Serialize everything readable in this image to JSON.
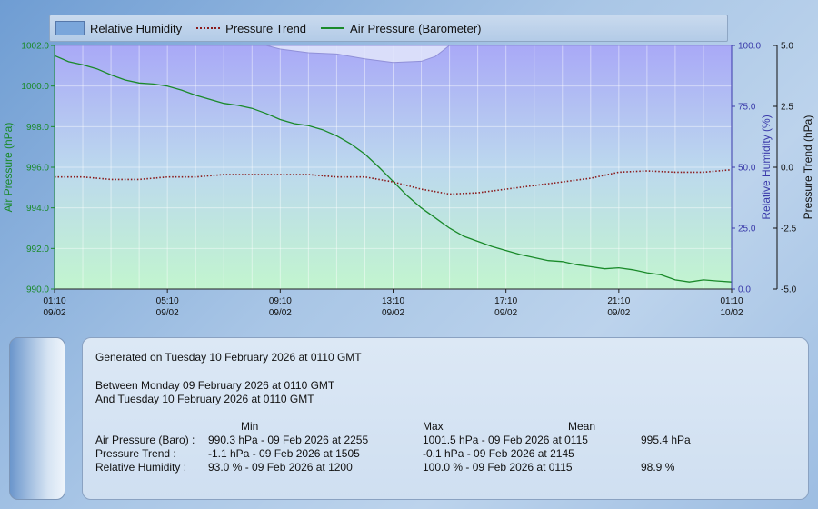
{
  "chart_data": {
    "type": "line",
    "x_axis": {
      "ticks": [
        {
          "time": "01:10",
          "date": "09/02"
        },
        {
          "time": "05:10",
          "date": "09/02"
        },
        {
          "time": "09:10",
          "date": "09/02"
        },
        {
          "time": "13:10",
          "date": "09/02"
        },
        {
          "time": "17:10",
          "date": "09/02"
        },
        {
          "time": "21:10",
          "date": "09/02"
        },
        {
          "time": "01:10",
          "date": "10/02"
        }
      ],
      "range_hours": [
        0,
        24
      ]
    },
    "axes": {
      "pressure": {
        "label": "Air Pressure (hPa)",
        "range": [
          990.0,
          1002.0
        ],
        "ticks": [
          "990.0",
          "992.0",
          "994.0",
          "996.0",
          "998.0",
          "1000.0",
          "1002.0"
        ],
        "color": "#1a8a2a"
      },
      "humidity": {
        "label": "Relative Humidity (%)",
        "range": [
          0.0,
          100.0
        ],
        "ticks": [
          "0.0",
          "25.0",
          "50.0",
          "75.0",
          "100.0"
        ],
        "color": "#3a3aaa"
      },
      "trend": {
        "label": "Pressure Trend (hPa)",
        "range": [
          -5.0,
          5.0
        ],
        "ticks": [
          "-5.0",
          "-2.5",
          "0.0",
          "2.5",
          "5.0"
        ],
        "color": "#111111"
      }
    },
    "legend": [
      {
        "name": "Relative Humidity",
        "style": "area"
      },
      {
        "name": "Pressure Trend",
        "style": "dotted"
      },
      {
        "name": "Air Pressure (Barometer)",
        "style": "line"
      }
    ],
    "series": [
      {
        "name": "Air Pressure (Barometer)",
        "axis": "pressure",
        "color": "#1a8a2a",
        "x": [
          0,
          0.5,
          1,
          1.5,
          2,
          2.5,
          3,
          3.5,
          4,
          4.5,
          5,
          5.5,
          6,
          6.5,
          7,
          7.5,
          8,
          8.5,
          9,
          9.5,
          10,
          10.5,
          11,
          11.5,
          12,
          12.5,
          13,
          13.5,
          14,
          14.5,
          15,
          15.5,
          16,
          16.5,
          17,
          17.5,
          18,
          18.5,
          19,
          19.5,
          20,
          20.5,
          21,
          21.5,
          22,
          22.5,
          23,
          23.5,
          24
        ],
        "y": [
          1001.5,
          1001.2,
          1001.05,
          1000.85,
          1000.55,
          1000.3,
          1000.15,
          1000.1,
          1000.0,
          999.8,
          999.55,
          999.35,
          999.15,
          999.05,
          998.9,
          998.65,
          998.35,
          998.15,
          998.05,
          997.85,
          997.55,
          997.15,
          996.65,
          996.0,
          995.3,
          994.6,
          994.0,
          993.5,
          993.0,
          992.6,
          992.35,
          992.1,
          991.9,
          991.7,
          991.55,
          991.4,
          991.35,
          991.2,
          991.1,
          991.0,
          991.05,
          990.95,
          990.8,
          990.7,
          990.45,
          990.35,
          990.45,
          990.4,
          990.35
        ]
      },
      {
        "name": "Pressure Trend",
        "axis": "trend",
        "color": "#8a1a1a",
        "x": [
          0,
          1,
          2,
          3,
          4,
          5,
          6,
          7,
          8,
          9,
          10,
          11,
          12,
          13,
          14,
          15,
          16,
          17,
          18,
          19,
          20,
          21,
          22,
          23,
          24
        ],
        "y": [
          -0.4,
          -0.4,
          -0.5,
          -0.5,
          -0.4,
          -0.4,
          -0.3,
          -0.3,
          -0.3,
          -0.3,
          -0.4,
          -0.4,
          -0.6,
          -0.9,
          -1.1,
          -1.05,
          -0.9,
          -0.75,
          -0.6,
          -0.45,
          -0.2,
          -0.15,
          -0.2,
          -0.2,
          -0.1
        ]
      },
      {
        "name": "Relative Humidity",
        "axis": "humidity",
        "color": "#9f9ff5",
        "x": [
          0,
          7.5,
          8,
          9,
          10,
          11,
          12,
          13,
          13.5,
          14,
          24
        ],
        "y": [
          100,
          100,
          98.5,
          97,
          96.5,
          94.5,
          93.0,
          93.5,
          95.5,
          100,
          100
        ]
      }
    ]
  },
  "summary": {
    "generated": "Generated on Tuesday 10 February 2026 at 0110  GMT",
    "between": "Between Monday 09 February 2026 at 0110 GMT",
    "and": "And Tuesday 10 February 2026 at 0110 GMT",
    "headers": {
      "min": "Min",
      "max": "Max",
      "mean": "Mean"
    },
    "rows": [
      {
        "label": "Air Pressure (Baro) :",
        "min": "990.3 hPa - 09 Feb 2026 at 2255",
        "max": "1001.5 hPa - 09 Feb 2026 at 0115",
        "mean": "995.4 hPa"
      },
      {
        "label": "Pressure Trend :",
        "min": "-1.1 hPa - 09 Feb 2026 at 1505",
        "max": "-0.1 hPa - 09 Feb 2026 at 2145",
        "mean": ""
      },
      {
        "label": "Relative Humidity :",
        "min": "93.0 % - 09 Feb 2026 at 1200",
        "max": "100.0 % - 09 Feb 2026 at 0115",
        "mean": "98.9 %"
      }
    ]
  }
}
